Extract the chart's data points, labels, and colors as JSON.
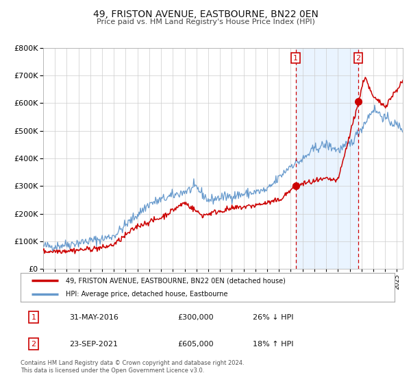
{
  "title": "49, FRISTON AVENUE, EASTBOURNE, BN22 0EN",
  "subtitle": "Price paid vs. HM Land Registry's House Price Index (HPI)",
  "legend_label_red": "49, FRISTON AVENUE, EASTBOURNE, BN22 0EN (detached house)",
  "legend_label_blue": "HPI: Average price, detached house, Eastbourne",
  "annotation1_date": "31-MAY-2016",
  "annotation1_price": "£300,000",
  "annotation1_hpi": "26% ↓ HPI",
  "annotation1_year": 2016.42,
  "annotation1_value": 300000,
  "annotation2_date": "23-SEP-2021",
  "annotation2_price": "£605,000",
  "annotation2_hpi": "18% ↑ HPI",
  "annotation2_year": 2021.73,
  "annotation2_value": 605000,
  "footer_line1": "Contains HM Land Registry data © Crown copyright and database right 2024.",
  "footer_line2": "This data is licensed under the Open Government Licence v3.0.",
  "red_color": "#cc0000",
  "blue_color": "#6699cc",
  "blue_fill_color": "#ddeeff",
  "grid_color": "#cccccc",
  "background_color": "#ffffff",
  "ylim": [
    0,
    800000
  ],
  "xlim_start": 1995,
  "xlim_end": 2025.5
}
